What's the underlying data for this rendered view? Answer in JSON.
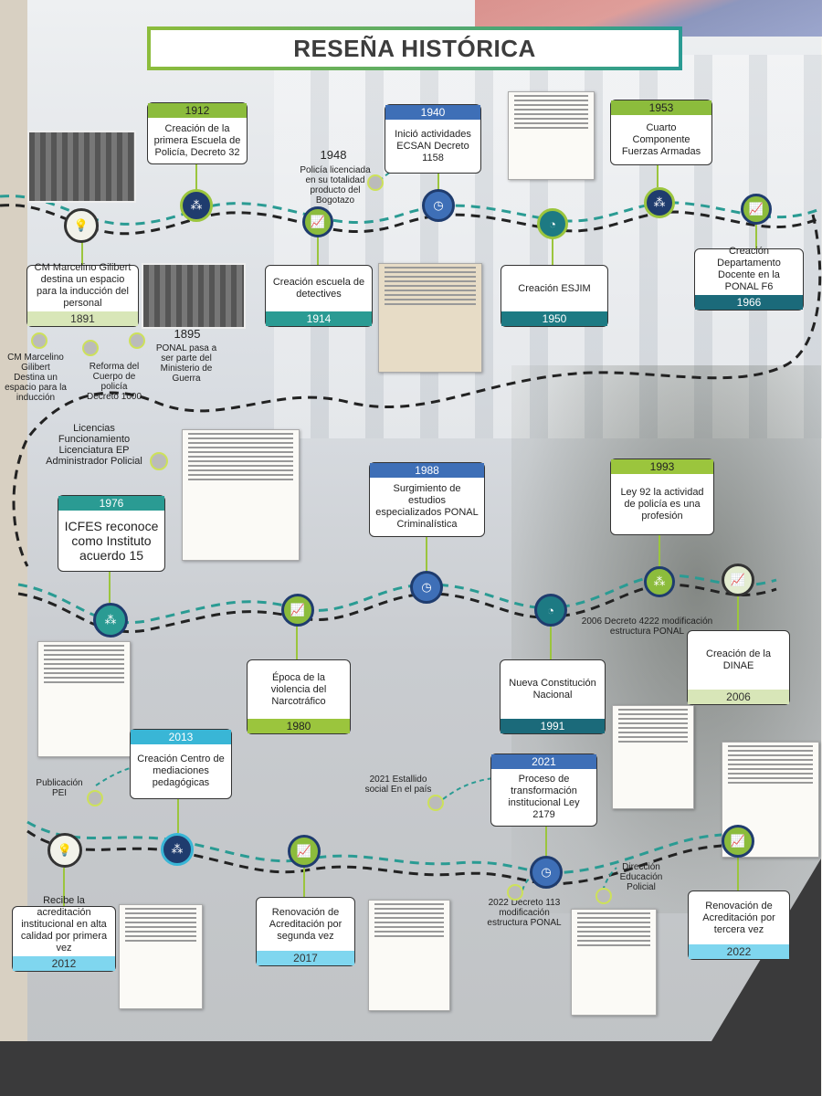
{
  "title": "RESEÑA HISTÓRICA",
  "cards": [
    {
      "id": "c1912",
      "year": "1912",
      "text": "Creación de la primera Escuela de Policía, Decreto 32",
      "color": "green"
    },
    {
      "id": "c1940",
      "year": "1940",
      "text": "Inició actividades ECSAN Decreto 1158",
      "color": "blue"
    },
    {
      "id": "c1953",
      "year": "1953",
      "text": "Cuarto Componente Fuerzas Armadas",
      "color": "green"
    },
    {
      "id": "c1891",
      "year": "1891",
      "text": "CM Marcelino Gilibert destina un espacio para la inducción del personal",
      "color": "lgreen"
    },
    {
      "id": "c1914",
      "year": "1914",
      "text": "Creación escuela de detectives",
      "color": "tealb"
    },
    {
      "id": "c1950",
      "year": "1950",
      "text": "Creación ESJIM",
      "color": "teal"
    },
    {
      "id": "c1966",
      "year": "1966",
      "text": "Creación Departamento Docente en la PONAL F6",
      "color": "dteal"
    },
    {
      "id": "c1976",
      "year": "1976",
      "text": "ICFES reconoce como Instituto acuerdo 15",
      "color": "tealb"
    },
    {
      "id": "c1988",
      "year": "1988",
      "text": "Surgimiento de estudios especializados PONAL Criminalística",
      "color": "blue"
    },
    {
      "id": "c1993",
      "year": "1993",
      "text": "Ley 92 la actividad de policía es una profesión",
      "color": "olive"
    },
    {
      "id": "c1980",
      "year": "1980",
      "text": "Época de la violencia del Narcotráfico",
      "color": "olive"
    },
    {
      "id": "c1991",
      "year": "1991",
      "text": "Nueva Constitución Nacional",
      "color": "dteal"
    },
    {
      "id": "c2006",
      "year": "2006",
      "text": "Creación de la DINAE",
      "color": "lgreen"
    },
    {
      "id": "c2013",
      "year": "2013",
      "text": "Creación Centro de mediaciones pedagógicas",
      "color": "cyan"
    },
    {
      "id": "c2021",
      "year": "2021",
      "text": "Proceso de transformación institucional Ley 2179",
      "color": "blue"
    },
    {
      "id": "c2012",
      "year": "2012",
      "text": "Recibe la acreditación institucional en alta calidad por primera vez",
      "color": "lblue"
    },
    {
      "id": "c2017",
      "year": "2017",
      "text": "Renovación de Acreditación por segunda vez",
      "color": "lblue"
    },
    {
      "id": "c2022",
      "year": "2022",
      "text": "Renovación de Acreditación por tercera vez",
      "color": "lblue"
    }
  ],
  "notes": {
    "n1948_year": "1948",
    "n1948": "Policía licenciada en su totalidad producto del Bogotazo",
    "n_cm": "CM Marcelino Gilibert Destina un espacio para la inducción",
    "n_reforma": "Reforma del Cuerpo de policía Decreto 1000",
    "n1895_year": "1895",
    "n1895": "PONAL pasa a ser parte del Ministerio de Guerra",
    "n_licencias": "Licencias Funcionamiento Licenciatura EP Administrador Policial",
    "n2006": "2006 Decreto 4222 modificación estructura PONAL",
    "n_pei": "Publicación PEI",
    "n2021": "2021 Estallido social En el país",
    "n2022": "2022 Decreto 113 modificación estructura PONAL",
    "n_direccion": "Dirección Educación Policial"
  },
  "icons": [
    "lightbulb-icon",
    "chart-icon",
    "clock-icon",
    "pie-icon",
    "network-icon"
  ],
  "colors": {
    "green": "#8cbc3c",
    "teal": "#2a9b93",
    "blue": "#3e6fb7",
    "dark": "#1f3c6e"
  }
}
